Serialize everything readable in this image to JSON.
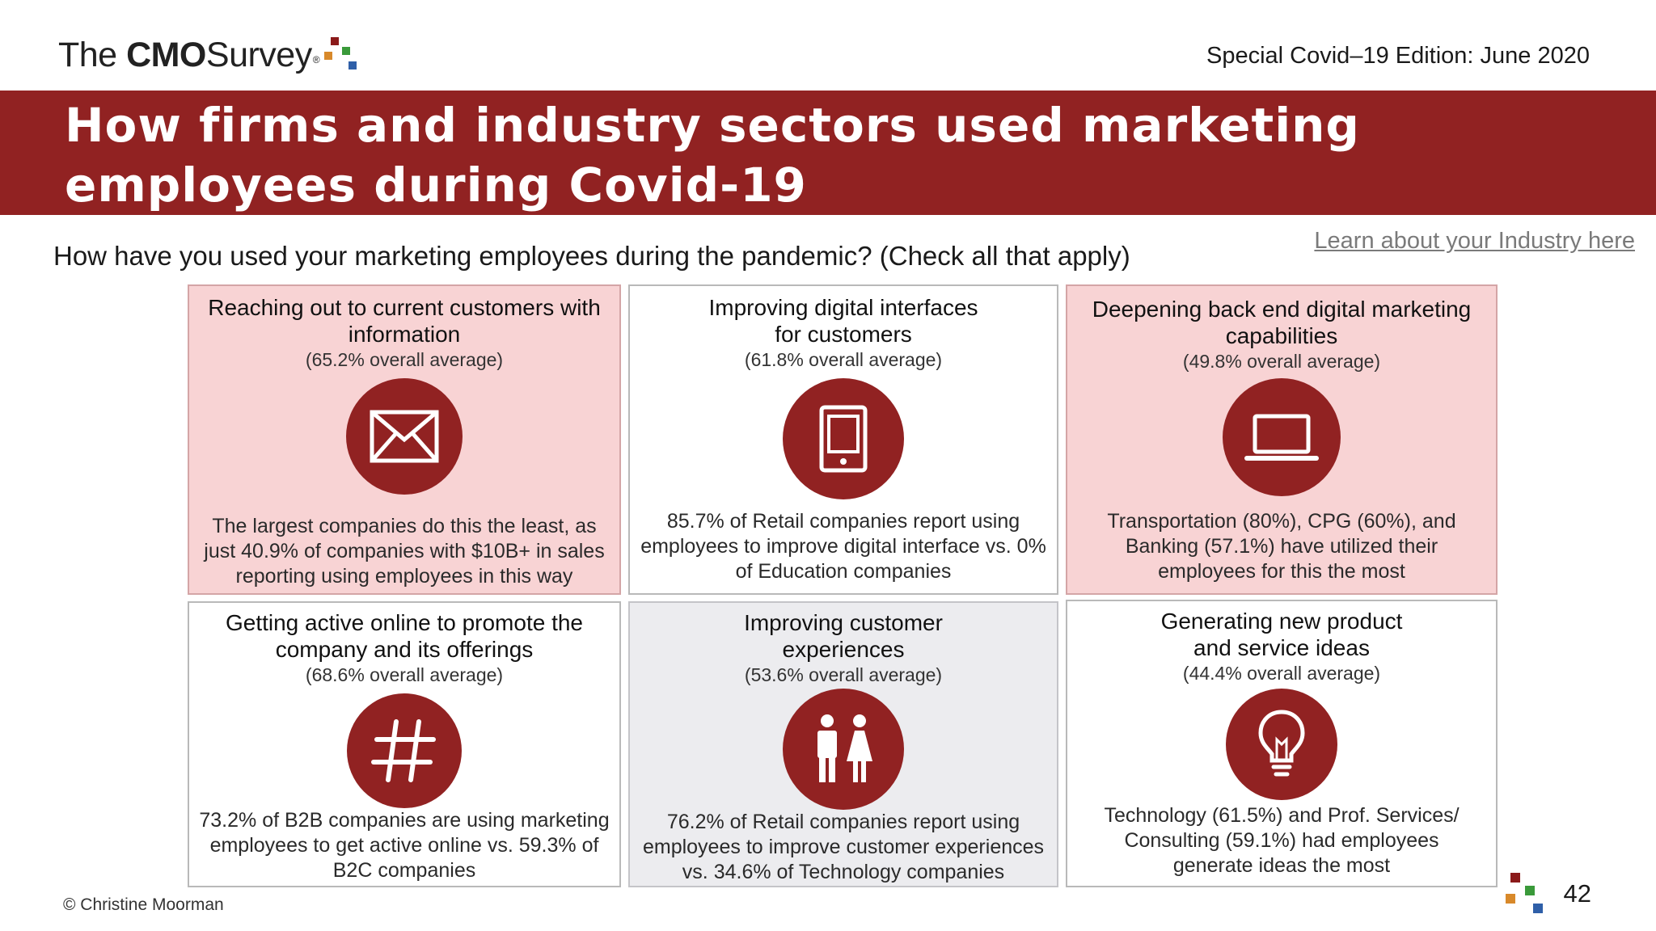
{
  "logo": {
    "text_the": "The",
    "text_cmo": "CMO",
    "text_survey": "Survey",
    "registered": "®"
  },
  "header": {
    "edition": "Special Covid–19 Edition: June 2020"
  },
  "banner": {
    "title": "How firms and industry sectors used marketing employees during Covid-19"
  },
  "question": "How have you used your marketing employees during the pandemic? (Check all that apply)",
  "learn_link": "Learn about your Industry here",
  "cards": [
    {
      "title": "Reaching out to current customers with information",
      "average": "(65.2% overall average)",
      "icon": "envelope-icon",
      "description": "The largest companies do this the least, as just 40.9% of companies with $10B+ in sales reporting using employees in this way"
    },
    {
      "title": "Improving digital interfaces for customers",
      "average": "(61.8% overall average)",
      "icon": "tablet-icon",
      "description": "85.7% of Retail companies report using employees to improve digital interface vs. 0% of Education companies"
    },
    {
      "title": "Deepening back end digital marketing capabilities",
      "average": "(49.8% overall average)",
      "icon": "laptop-icon",
      "description": "Transportation (80%), CPG (60%), and Banking (57.1%) have utilized their employees for this the most"
    },
    {
      "title": "Getting active online to promote the company and its offerings",
      "average": "(68.6% overall average)",
      "icon": "hashtag-icon",
      "description": "73.2% of B2B companies are using marketing employees to get active online vs. 59.3% of B2C companies"
    },
    {
      "title": "Improving customer experiences",
      "average": "(53.6% overall average)",
      "icon": "people-icon",
      "description": "76.2% of Retail companies report using employees to improve customer experiences vs. 34.6% of Technology companies"
    },
    {
      "title": "Generating new product and service ideas",
      "average": "(44.4% overall average)",
      "icon": "lightbulb-icon",
      "description": "Technology (61.5%) and Prof. Services/ Consulting (59.1%) had employees generate ideas the most"
    }
  ],
  "footer": {
    "copyright": "© Christine Moorman",
    "page_number": "42"
  },
  "colors": {
    "banner": "#912222",
    "pink_card": "#f8d3d4",
    "grey_card": "#ececef",
    "icon_circle": "#912222"
  }
}
